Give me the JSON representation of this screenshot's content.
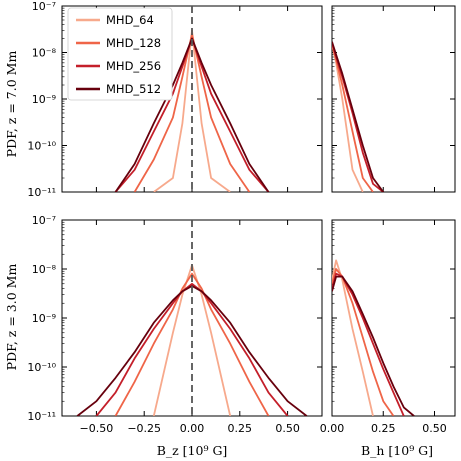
{
  "colors": {
    "MHD_64": "#f7a98c",
    "MHD_128": "#ef6548",
    "MHD_256": "#c41f2a",
    "MHD_512": "#67000d",
    "zero_line": "#555555"
  },
  "chart_data": [
    {
      "panel": "top-left",
      "type": "line",
      "ylabel": "PDF,  z = 7.0 Mm",
      "xlabel": "",
      "xlim": [
        -0.68,
        0.68
      ],
      "ylim": [
        1e-11,
        1e-07
      ],
      "yscale": "log",
      "legend_placement": "top-left",
      "zero_line": true,
      "x": [
        -0.5,
        -0.4,
        -0.3,
        -0.2,
        -0.1,
        -0.05,
        0,
        0.05,
        0.1,
        0.2,
        0.3,
        0.4,
        0.5
      ],
      "series": [
        {
          "name": "MHD_64",
          "values": [
            null,
            null,
            null,
            1e-11,
            2e-11,
            3e-10,
            3e-08,
            3e-10,
            2e-11,
            1e-11,
            null,
            null,
            null
          ]
        },
        {
          "name": "MHD_128",
          "values": [
            null,
            null,
            1e-11,
            5e-11,
            4e-10,
            3e-09,
            2.5e-08,
            3e-09,
            4e-10,
            4e-11,
            1e-11,
            null,
            null
          ]
        },
        {
          "name": "MHD_256",
          "values": [
            null,
            1e-11,
            3e-11,
            2e-10,
            1.3e-09,
            5e-09,
            2e-08,
            5e-09,
            1.3e-09,
            2e-10,
            3e-11,
            1e-11,
            null
          ]
        },
        {
          "name": "MHD_512",
          "values": [
            null,
            1e-11,
            4e-11,
            3e-10,
            2e-09,
            6e-09,
            2e-08,
            6e-09,
            2e-09,
            3e-10,
            4e-11,
            1e-11,
            null
          ]
        }
      ],
      "legend": [
        "MHD_64",
        "MHD_128",
        "MHD_256",
        "MHD_512"
      ]
    },
    {
      "panel": "top-right",
      "type": "line",
      "xlim": [
        0,
        0.6
      ],
      "ylim": [
        1e-11,
        1e-07
      ],
      "yscale": "log",
      "x": [
        0.0,
        0.02,
        0.05,
        0.1,
        0.15,
        0.2,
        0.25,
        0.3
      ],
      "series": [
        {
          "name": "MHD_64",
          "values": [
            1.5e-08,
            6e-09,
            1e-09,
            3e-11,
            1e-11,
            null,
            null,
            null
          ]
        },
        {
          "name": "MHD_128",
          "values": [
            1.5e-08,
            7e-09,
            2e-09,
            2e-10,
            2e-11,
            1e-11,
            null,
            null
          ]
        },
        {
          "name": "MHD_256",
          "values": [
            1.6e-08,
            8e-09,
            3e-09,
            5e-10,
            7e-11,
            1.5e-11,
            1e-11,
            null
          ]
        },
        {
          "name": "MHD_512",
          "values": [
            1.7e-08,
            9e-09,
            3.5e-09,
            6e-10,
            1e-10,
            2e-11,
            1e-11,
            null
          ]
        }
      ]
    },
    {
      "panel": "bottom-left",
      "type": "line",
      "ylabel": "PDF,  z = 3.0 Mm",
      "xlabel": "B_z  [10⁹ G]",
      "xlim": [
        -0.68,
        0.68
      ],
      "ylim": [
        1e-11,
        1e-07
      ],
      "yscale": "log",
      "zero_line": true,
      "xticks": [
        "−0.50",
        "−0.25",
        "0.00",
        "0.25",
        "0.50"
      ],
      "x": [
        -0.6,
        -0.5,
        -0.4,
        -0.3,
        -0.2,
        -0.1,
        -0.05,
        0,
        0.05,
        0.1,
        0.2,
        0.3,
        0.4,
        0.5,
        0.6
      ],
      "series": [
        {
          "name": "MHD_64",
          "values": [
            null,
            null,
            null,
            null,
            1e-11,
            5e-10,
            3e-09,
            1.2e-08,
            3e-09,
            5e-10,
            1e-11,
            null,
            null,
            null,
            null
          ]
        },
        {
          "name": "MHD_128",
          "values": [
            null,
            null,
            1e-11,
            5e-11,
            3e-10,
            1.5e-09,
            4e-09,
            8e-09,
            4e-09,
            1.5e-09,
            3e-10,
            5e-11,
            1e-11,
            null,
            null
          ]
        },
        {
          "name": "MHD_256",
          "values": [
            null,
            1e-11,
            3e-11,
            1.5e-10,
            6e-10,
            2e-09,
            3.5e-09,
            5e-09,
            3.5e-09,
            2e-09,
            6e-10,
            1.5e-10,
            3e-11,
            1e-11,
            null
          ]
        },
        {
          "name": "MHD_512",
          "values": [
            1e-11,
            2e-11,
            6e-11,
            2e-10,
            8e-10,
            2.3e-09,
            3.5e-09,
            4.5e-09,
            3.5e-09,
            2.3e-09,
            8e-10,
            2e-10,
            6e-11,
            2e-11,
            1e-11
          ]
        }
      ]
    },
    {
      "panel": "bottom-right",
      "type": "line",
      "xlabel": "B_h  [10⁹ G]",
      "xlim": [
        0,
        0.6
      ],
      "ylim": [
        1e-11,
        1e-07
      ],
      "yscale": "log",
      "xticks": [
        "0.00",
        "0.25",
        "0.50"
      ],
      "x": [
        0.0,
        0.02,
        0.05,
        0.1,
        0.15,
        0.2,
        0.25,
        0.3,
        0.35,
        0.4,
        0.45,
        0.5
      ],
      "series": [
        {
          "name": "MHD_64",
          "values": [
            6e-09,
            1.5e-08,
            6e-09,
            6e-10,
            8e-11,
            1e-11,
            null,
            null,
            null,
            null,
            null,
            null
          ]
        },
        {
          "name": "MHD_128",
          "values": [
            5e-09,
            1e-08,
            7e-09,
            2e-09,
            4e-10,
            8e-11,
            2e-11,
            1e-11,
            null,
            null,
            null,
            null
          ]
        },
        {
          "name": "MHD_256",
          "values": [
            4e-09,
            8e-09,
            7e-09,
            3e-09,
            1e-09,
            3e-10,
            9e-11,
            3e-11,
            1e-11,
            null,
            null,
            null
          ]
        },
        {
          "name": "MHD_512",
          "values": [
            3.5e-09,
            7e-09,
            7e-09,
            3.5e-09,
            1.2e-09,
            4e-10,
            1.2e-10,
            4e-11,
            1.5e-11,
            1e-11,
            null,
            null
          ]
        }
      ]
    }
  ],
  "ytick_labels": [
    "10⁻⁷",
    "10⁻⁸",
    "10⁻⁹",
    "10⁻¹⁰",
    "10⁻¹¹"
  ]
}
